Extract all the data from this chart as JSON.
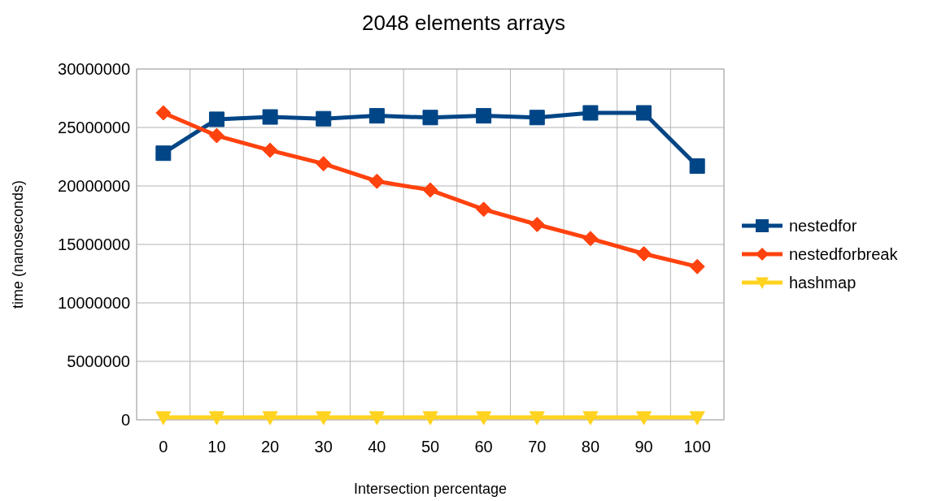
{
  "chart_data": {
    "type": "line",
    "title": "2048 elements arrays",
    "xlabel": "Intersection percentage",
    "ylabel": "time (nanoseconds)",
    "categories": [
      "0",
      "10",
      "20",
      "30",
      "40",
      "50",
      "60",
      "70",
      "80",
      "90",
      "100"
    ],
    "series": [
      {
        "name": "nestedfor",
        "color": "#004586",
        "marker": "square",
        "values": [
          22800000,
          25700000,
          25900000,
          25750000,
          26000000,
          25850000,
          26000000,
          25850000,
          26250000,
          26250000,
          21700000
        ]
      },
      {
        "name": "nestedforbreak",
        "color": "#ff420e",
        "marker": "diamond",
        "values": [
          26250000,
          24300000,
          23050000,
          21900000,
          20400000,
          19650000,
          18000000,
          16700000,
          15500000,
          14200000,
          13100000
        ]
      },
      {
        "name": "hashmap",
        "color": "#ffd320",
        "marker": "triangle",
        "values": [
          200000,
          200000,
          200000,
          200000,
          200000,
          200000,
          200000,
          200000,
          200000,
          200000,
          200000
        ]
      }
    ],
    "ylim": [
      0,
      30000000
    ],
    "yticks": [
      0,
      5000000,
      10000000,
      15000000,
      20000000,
      25000000,
      30000000
    ],
    "grid": true,
    "legend": "right"
  }
}
